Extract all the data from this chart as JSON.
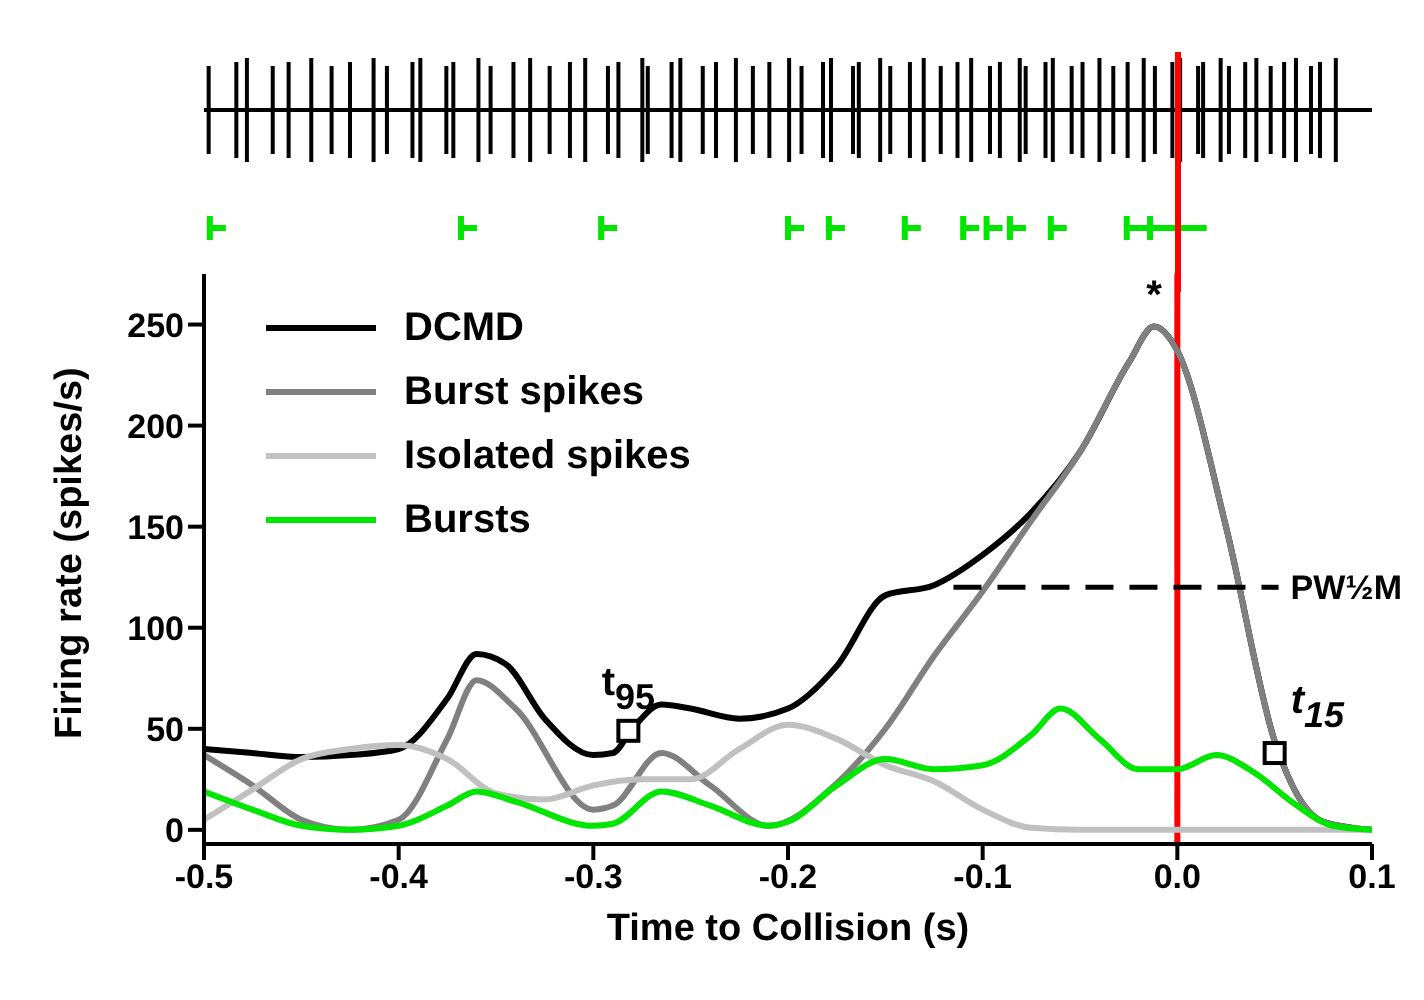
{
  "chart_data": {
    "type": "line",
    "xlabel": "Time to Collision (s)",
    "ylabel": "Firing rate (spikes/s)",
    "xlim": [
      -0.5,
      0.1
    ],
    "xticks": [
      -0.5,
      -0.4,
      -0.3,
      -0.2,
      -0.1,
      {
        "value": 0,
        "label": "0.0"
      },
      0.1
    ],
    "ylim": [
      -7,
      275
    ],
    "yticks": [
      0,
      50,
      100,
      150,
      200,
      250
    ],
    "grid": false,
    "legend": "top left",
    "series": [
      {
        "name": "DCMD",
        "color": "#000000",
        "x": [
          -0.5,
          -0.475,
          -0.45,
          -0.425,
          -0.4,
          -0.375,
          -0.36,
          -0.345,
          -0.325,
          -0.3,
          -0.29,
          -0.28,
          -0.265,
          -0.25,
          -0.225,
          -0.2,
          -0.175,
          -0.15,
          -0.125,
          -0.1,
          -0.075,
          -0.05,
          -0.025,
          -0.012,
          0,
          0.025,
          0.05,
          0.075,
          0.1
        ],
        "values": [
          40,
          38,
          36,
          37,
          40,
          65,
          87,
          82,
          55,
          37,
          38,
          50,
          62,
          60,
          55,
          60,
          81,
          116,
          121,
          136,
          157,
          187,
          231,
          249,
          237,
          150,
          44,
          4,
          0
        ]
      },
      {
        "name": "Burst spikes",
        "color": "#808080",
        "x": [
          -0.5,
          -0.475,
          -0.45,
          -0.425,
          -0.4,
          -0.375,
          -0.36,
          -0.34,
          -0.3,
          -0.29,
          -0.265,
          -0.24,
          -0.21,
          -0.175,
          -0.15,
          -0.125,
          -0.1,
          -0.075,
          -0.05,
          -0.025,
          -0.012,
          0,
          0.025,
          0.05,
          0.075,
          0.1
        ],
        "values": [
          37,
          22,
          5,
          0,
          5,
          45,
          74,
          60,
          10,
          12,
          38,
          22,
          2,
          23,
          50,
          86,
          118,
          153,
          187,
          231,
          249,
          237,
          150,
          44,
          4,
          0
        ]
      },
      {
        "name": "Isolated spikes",
        "color": "#c0c0c0",
        "x": [
          -0.5,
          -0.475,
          -0.45,
          -0.425,
          -0.4,
          -0.375,
          -0.35,
          -0.325,
          -0.3,
          -0.275,
          -0.25,
          -0.225,
          -0.2,
          -0.175,
          -0.15,
          -0.125,
          -0.1,
          -0.075,
          -0.05,
          0.1
        ],
        "values": [
          5,
          20,
          35,
          40,
          42,
          35,
          18,
          15,
          22,
          25,
          25,
          40,
          52,
          45,
          32,
          24,
          10,
          1,
          0,
          0
        ]
      },
      {
        "name": "Bursts",
        "color": "#00e600",
        "x": [
          -0.5,
          -0.475,
          -0.45,
          -0.425,
          -0.4,
          -0.375,
          -0.36,
          -0.34,
          -0.3,
          -0.29,
          -0.265,
          -0.24,
          -0.21,
          -0.2,
          -0.175,
          -0.15,
          -0.125,
          -0.1,
          -0.075,
          -0.06,
          -0.04,
          -0.02,
          0,
          0.02,
          0.04,
          0.06,
          0.08,
          0.1
        ],
        "values": [
          19,
          10,
          2,
          0,
          2,
          12,
          19,
          14,
          2,
          3,
          19,
          12,
          2,
          4,
          22,
          35,
          30,
          32,
          47,
          60,
          45,
          30,
          30,
          37,
          28,
          13,
          2,
          0
        ]
      },
      {
        "name": "PW½M",
        "color": "#000000",
        "line_style": "dashed",
        "x": [
          -0.115,
          0.052
        ],
        "values": [
          120,
          120
        ]
      },
      {
        "type": "scatter",
        "marker": "square",
        "color": "#000000",
        "x": [
          -0.282,
          0.05
        ],
        "values": [
          49,
          38
        ]
      }
    ],
    "ref_lines": [
      {
        "axis": "x",
        "value": 0,
        "color": "#ff0000"
      }
    ],
    "annotations": [
      {
        "text": "*",
        "x": -0.012,
        "y": 252
      },
      {
        "text": "t$_{95}$",
        "x": -0.282,
        "y": 49
      },
      {
        "text": "t$_{15}$",
        "x": 0.05,
        "y": 38
      }
    ]
  }
}
